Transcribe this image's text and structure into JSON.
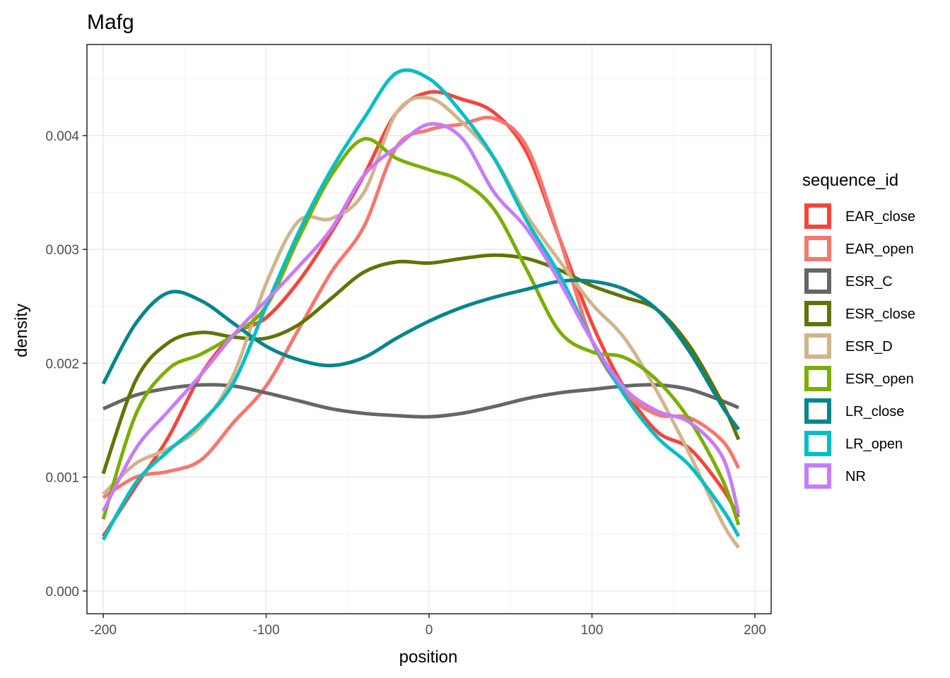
{
  "chart_data": {
    "type": "line",
    "title": "Mafg",
    "xlabel": "position",
    "ylabel": "density",
    "xlim": [
      -210,
      210
    ],
    "ylim": [
      -0.0002,
      0.0048
    ],
    "x_ticks": [
      -200,
      -100,
      0,
      100,
      200
    ],
    "x_tick_labels": [
      "-200",
      "-100",
      "0",
      "100",
      "200"
    ],
    "y_ticks": [
      0,
      0.001,
      0.002,
      0.003,
      0.004
    ],
    "y_tick_labels": [
      "0.000",
      "0.001",
      "0.002",
      "0.003",
      "0.004"
    ],
    "grid": true,
    "legend": {
      "title": "sequence_id",
      "position": "right"
    },
    "x": [
      -200,
      -180,
      -160,
      -140,
      -120,
      -100,
      -80,
      -60,
      -40,
      -20,
      0,
      20,
      40,
      60,
      80,
      100,
      120,
      140,
      160,
      180,
      190
    ],
    "series": [
      {
        "name": "EAR_close",
        "color": "#F8433C",
        "values": [
          0.00048,
          0.00092,
          0.00135,
          0.0019,
          0.00225,
          0.0024,
          0.00272,
          0.00315,
          0.00365,
          0.0042,
          0.00438,
          0.00432,
          0.0042,
          0.00385,
          0.0031,
          0.00235,
          0.00178,
          0.0014,
          0.00125,
          0.0009,
          0.00065
        ]
      },
      {
        "name": "EAR_open",
        "color": "#F8766D",
        "values": [
          0.00082,
          0.001,
          0.00105,
          0.00115,
          0.00148,
          0.0018,
          0.0023,
          0.0028,
          0.0032,
          0.0039,
          0.00405,
          0.0041,
          0.00415,
          0.0039,
          0.0031,
          0.0022,
          0.00175,
          0.00155,
          0.00152,
          0.00132,
          0.00108
        ]
      },
      {
        "name": "ESR_C",
        "color": "#666666",
        "values": [
          0.0016,
          0.00172,
          0.00178,
          0.00181,
          0.0018,
          0.00174,
          0.00167,
          0.0016,
          0.00156,
          0.00154,
          0.00153,
          0.00156,
          0.00162,
          0.00169,
          0.00174,
          0.00177,
          0.0018,
          0.00181,
          0.00177,
          0.00167,
          0.00161
        ]
      },
      {
        "name": "ESR_close",
        "color": "#5E7500",
        "values": [
          0.00103,
          0.00185,
          0.00218,
          0.00227,
          0.00223,
          0.00222,
          0.00234,
          0.00257,
          0.0028,
          0.00289,
          0.00288,
          0.00292,
          0.00295,
          0.00292,
          0.00282,
          0.00268,
          0.00258,
          0.00247,
          0.00215,
          0.00165,
          0.00133
        ]
      },
      {
        "name": "ESR_D",
        "color": "#D2B48C",
        "values": [
          0.00085,
          0.00112,
          0.00125,
          0.00145,
          0.0019,
          0.0027,
          0.00325,
          0.00327,
          0.0035,
          0.0042,
          0.00433,
          0.00412,
          0.0038,
          0.0033,
          0.0029,
          0.00252,
          0.00222,
          0.00175,
          0.0012,
          0.0006,
          0.00038
        ]
      },
      {
        "name": "ESR_open",
        "color": "#7CAE00",
        "values": [
          0.00063,
          0.00155,
          0.00195,
          0.00208,
          0.00225,
          0.0025,
          0.0031,
          0.00365,
          0.00397,
          0.0038,
          0.0037,
          0.0036,
          0.00335,
          0.00282,
          0.00228,
          0.0021,
          0.00205,
          0.00185,
          0.0015,
          0.00098,
          0.00058
        ]
      },
      {
        "name": "LR_close",
        "color": "#00868B",
        "values": [
          0.00182,
          0.00235,
          0.00262,
          0.00255,
          0.00235,
          0.00215,
          0.00203,
          0.00198,
          0.00205,
          0.00222,
          0.00237,
          0.00249,
          0.00258,
          0.00265,
          0.00272,
          0.00272,
          0.00265,
          0.00247,
          0.0021,
          0.00162,
          0.00142
        ]
      },
      {
        "name": "LR_open",
        "color": "#00BFC4",
        "values": [
          0.00045,
          0.00095,
          0.00123,
          0.00148,
          0.00183,
          0.0025,
          0.00315,
          0.0037,
          0.00415,
          0.00455,
          0.0045,
          0.0042,
          0.0038,
          0.00325,
          0.00278,
          0.0022,
          0.00172,
          0.00135,
          0.0011,
          0.00072,
          0.00048
        ]
      },
      {
        "name": "NR",
        "color": "#C77CFF",
        "values": [
          0.0007,
          0.00125,
          0.00158,
          0.0019,
          0.00225,
          0.00255,
          0.00285,
          0.00318,
          0.00365,
          0.0039,
          0.0041,
          0.00398,
          0.0035,
          0.00318,
          0.00272,
          0.0022,
          0.00178,
          0.00158,
          0.00148,
          0.00118,
          0.00068
        ]
      }
    ]
  }
}
